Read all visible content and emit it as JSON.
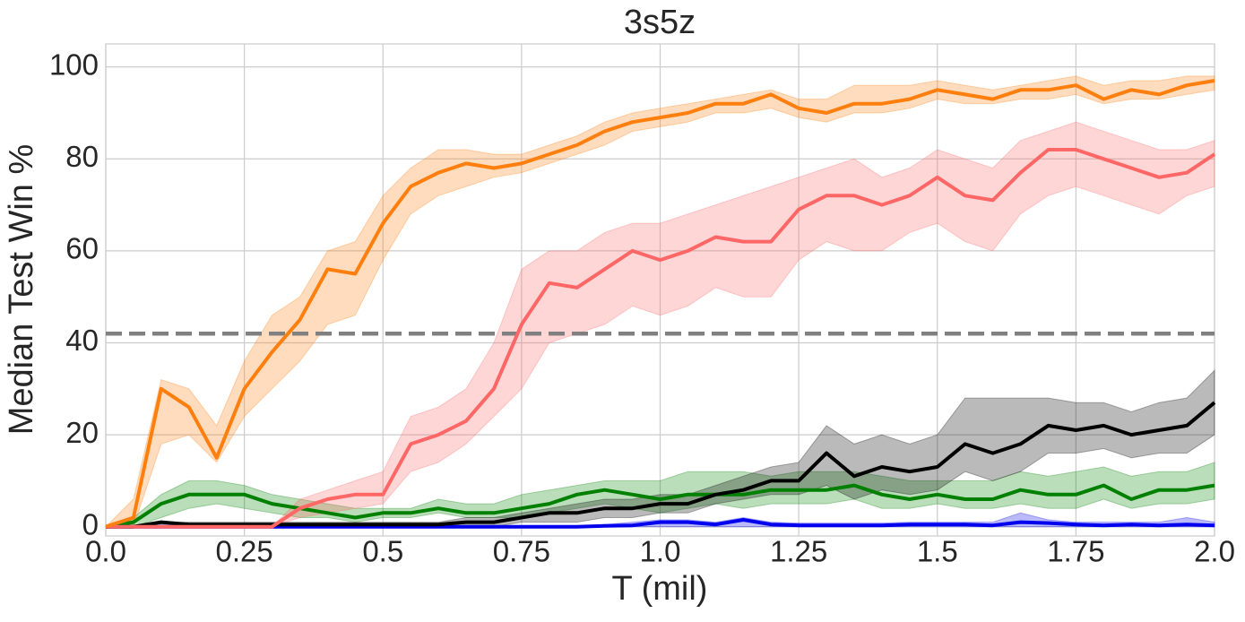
{
  "chart_data": {
    "type": "line",
    "title": "3s5z",
    "x_label": "T (mil)",
    "y_label": "Median Test Win %",
    "x": [
      0,
      0.05,
      0.1,
      0.15,
      0.2,
      0.25,
      0.3,
      0.35,
      0.4,
      0.45,
      0.5,
      0.55,
      0.6,
      0.65,
      0.7,
      0.75,
      0.8,
      0.85,
      0.9,
      0.95,
      1.0,
      1.05,
      1.1,
      1.15,
      1.2,
      1.25,
      1.3,
      1.35,
      1.4,
      1.45,
      1.5,
      1.55,
      1.6,
      1.65,
      1.7,
      1.75,
      1.8,
      1.85,
      1.9,
      1.95,
      2.0
    ],
    "series": [
      {
        "color": "#0000ee",
        "values": [
          0,
          0,
          0,
          0,
          0,
          0,
          0,
          0,
          0,
          0,
          0,
          0,
          0,
          0,
          0,
          0,
          0,
          0,
          0.2,
          0.3,
          1,
          1,
          0.5,
          1.5,
          0.5,
          0.3,
          0.3,
          0.3,
          0.3,
          0.5,
          0.5,
          0.5,
          0.3,
          1,
          0.8,
          0.5,
          0.3,
          0.5,
          0.3,
          0.5,
          0.3
        ],
        "lower": [
          0,
          0,
          0,
          0,
          0,
          0,
          0,
          0,
          0,
          0,
          0,
          0,
          0,
          0,
          0,
          0,
          0,
          0,
          0,
          0,
          0,
          0,
          0,
          0,
          0,
          0,
          0,
          0,
          0,
          0,
          0,
          0,
          0,
          0,
          0,
          0,
          0,
          0,
          0,
          0,
          0
        ],
        "upper": [
          0,
          0,
          0,
          0,
          0,
          0,
          0,
          0,
          0,
          0,
          0,
          0,
          0,
          0,
          0,
          0,
          0,
          0,
          0.5,
          1,
          1.5,
          1.5,
          1,
          2,
          1,
          0.8,
          0.8,
          0.8,
          0.8,
          1,
          1,
          1,
          1,
          3,
          1.5,
          1,
          1,
          1,
          1,
          2,
          1
        ]
      },
      {
        "color": "#008000",
        "values": [
          0,
          1,
          5,
          7,
          7,
          7,
          5,
          4,
          3,
          2,
          3,
          3,
          4,
          3,
          3,
          4,
          5,
          7,
          8,
          7,
          6,
          7,
          7,
          7,
          8,
          8,
          8,
          9,
          7,
          6,
          7,
          6,
          6,
          8,
          7,
          7,
          9,
          6,
          8,
          8,
          9
        ],
        "lower": [
          0,
          0,
          2,
          4,
          5,
          4,
          3,
          2,
          2,
          1,
          2,
          2,
          3,
          2,
          2,
          2,
          3,
          4,
          5,
          4,
          3,
          4,
          5,
          4,
          5,
          5,
          5,
          6,
          4,
          4,
          5,
          4,
          4,
          5,
          4,
          4,
          6,
          4,
          5,
          5,
          6
        ],
        "upper": [
          0,
          2,
          7,
          10,
          10,
          9,
          7,
          6,
          5,
          4,
          4,
          4,
          6,
          5,
          5,
          7,
          8,
          9,
          10,
          10,
          10,
          12,
          12,
          12,
          11,
          12,
          12,
          12,
          11,
          10,
          10,
          10,
          10,
          12,
          11,
          12,
          13,
          11,
          12,
          12,
          14
        ]
      },
      {
        "color": "#000000",
        "values": [
          0,
          0,
          1,
          0.5,
          0.5,
          0.5,
          0.5,
          0.5,
          0.5,
          0.5,
          0.5,
          0.5,
          0.5,
          1,
          1,
          2,
          3,
          3,
          4,
          4,
          5,
          5,
          7,
          8,
          10,
          10,
          16,
          11,
          13,
          12,
          13,
          18,
          16,
          18,
          22,
          21,
          22,
          20,
          21,
          22,
          27
        ],
        "lower": [
          0,
          0,
          0,
          0,
          0,
          0,
          0,
          0,
          0,
          0,
          0,
          0,
          0,
          0,
          0,
          1,
          1,
          1,
          2,
          2,
          3,
          3,
          5,
          6,
          7,
          7,
          9,
          6,
          8,
          7,
          8,
          12,
          10,
          12,
          16,
          16,
          17,
          15,
          16,
          16,
          20
        ],
        "upper": [
          0,
          0,
          1,
          1,
          1,
          1,
          1,
          1,
          1,
          1,
          1,
          1,
          1,
          2,
          2,
          3,
          4,
          5,
          6,
          6,
          7,
          7,
          9,
          11,
          13,
          14,
          22,
          18,
          20,
          18,
          20,
          28,
          28,
          28,
          28,
          27,
          27,
          25,
          27,
          28,
          34
        ]
      },
      {
        "color": "#ff6666",
        "values": [
          0,
          0,
          0,
          0,
          0,
          0,
          0,
          4,
          6,
          7,
          7,
          18,
          20,
          23,
          30,
          44,
          53,
          52,
          56,
          60,
          58,
          60,
          63,
          62,
          62,
          69,
          72,
          72,
          70,
          72,
          76,
          72,
          71,
          77,
          82,
          82,
          80,
          78,
          76,
          77,
          81
        ],
        "lower": [
          0,
          0,
          0,
          0,
          0,
          0,
          0,
          2,
          3,
          4,
          5,
          12,
          14,
          18,
          24,
          30,
          40,
          42,
          44,
          48,
          46,
          48,
          52,
          50,
          50,
          58,
          62,
          60,
          60,
          64,
          66,
          62,
          60,
          68,
          72,
          74,
          72,
          70,
          68,
          72,
          74
        ],
        "upper": [
          0,
          0,
          0,
          0,
          0,
          0,
          0,
          6,
          8,
          10,
          12,
          24,
          26,
          30,
          40,
          56,
          60,
          60,
          64,
          66,
          66,
          68,
          70,
          72,
          74,
          76,
          78,
          80,
          76,
          78,
          82,
          80,
          78,
          84,
          86,
          88,
          86,
          84,
          82,
          82,
          84
        ]
      },
      {
        "color": "#ff7f0e",
        "values": [
          0,
          2,
          30,
          26,
          15,
          30,
          38,
          45,
          56,
          55,
          66,
          74,
          77,
          79,
          78,
          79,
          81,
          83,
          86,
          88,
          89,
          90,
          92,
          92,
          94,
          91,
          90,
          92,
          92,
          93,
          95,
          94,
          93,
          95,
          95,
          96,
          93,
          95,
          94,
          96,
          97
        ],
        "lower": [
          0,
          0,
          18,
          20,
          14,
          24,
          30,
          36,
          44,
          46,
          58,
          68,
          72,
          74,
          76,
          77,
          79,
          81,
          83,
          86,
          87,
          88,
          90,
          90,
          91,
          89,
          88,
          90,
          90,
          91,
          93,
          92,
          92,
          93,
          93,
          94,
          92,
          93,
          93,
          94,
          95
        ],
        "upper": [
          0,
          6,
          32,
          30,
          22,
          36,
          46,
          50,
          60,
          62,
          72,
          78,
          82,
          82,
          81,
          81,
          83,
          85,
          88,
          90,
          91,
          92,
          93,
          94,
          95,
          93,
          93,
          96,
          96,
          96,
          97,
          96,
          95,
          96,
          97,
          98,
          96,
          97,
          97,
          98,
          98
        ]
      }
    ],
    "hline": {
      "value": 42,
      "color": "#808080"
    },
    "xlim": [
      0,
      2
    ],
    "ylim": [
      -2,
      105
    ],
    "xticks": [
      {
        "value": 0,
        "label": "0.0"
      },
      0.25,
      0.5,
      0.75,
      {
        "value": 1,
        "label": "1.0"
      },
      1.25,
      1.5,
      1.75,
      {
        "value": 2,
        "label": "2.0"
      }
    ],
    "yticks": [
      0,
      20,
      40,
      60,
      80,
      100
    ],
    "grid": true
  }
}
